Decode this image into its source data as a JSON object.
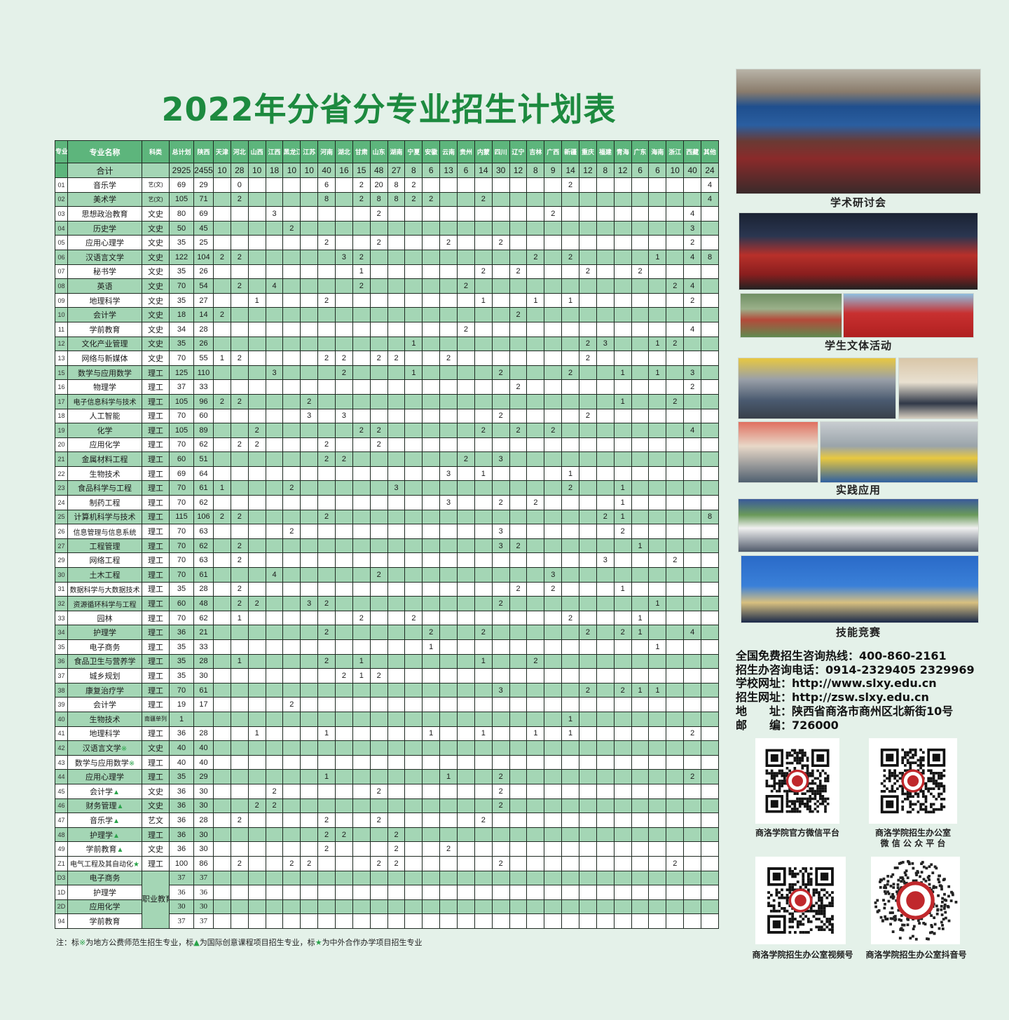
{
  "title": "2022年分省分专业招生计划表",
  "header": {
    "code": "专业代号",
    "name": "专业名称",
    "type": "科类",
    "total": "总计划",
    "shaanxi": "陕西",
    "provinces": [
      "天津",
      "河北",
      "山西",
      "江西",
      "黑龙江",
      "江苏",
      "河南",
      "湖北",
      "甘肃",
      "山东",
      "湖南",
      "宁夏",
      "安徽",
      "云南",
      "贵州",
      "内蒙",
      "四川",
      "辽宁",
      "吉林",
      "广西",
      "新疆",
      "重庆",
      "福建",
      "青海",
      "广东",
      "海南",
      "浙江",
      "西藏",
      "其他"
    ]
  },
  "summary": {
    "label": "合计",
    "total": "2925",
    "shaanxi": "2455",
    "provinces": [
      "10",
      "28",
      "10",
      "18",
      "10",
      "10",
      "40",
      "16",
      "15",
      "48",
      "27",
      "8",
      "6",
      "13",
      "6",
      "14",
      "30",
      "12",
      "8",
      "9",
      "14",
      "12",
      "8",
      "12",
      "6",
      "6",
      "10",
      "40",
      "24"
    ]
  },
  "vocational_type": "职业教育单招本科",
  "rows": [
    {
      "code": "01",
      "name": "音乐学",
      "type": "艺(文)",
      "total": "69",
      "shaanxi": "29",
      "cells": {
        "河北": "0",
        "河南": "6",
        "甘肃": "2",
        "山东": "20",
        "湖南": "8",
        "宁夏": "2",
        "新疆": "2",
        "其他": "4"
      }
    },
    {
      "code": "02",
      "name": "美术学",
      "type": "艺(文)",
      "total": "105",
      "shaanxi": "71",
      "cells": {
        "河北": "2",
        "河南": "8",
        "甘肃": "2",
        "山东": "8",
        "湖南": "8",
        "宁夏": "2",
        "安徽": "2",
        "内蒙": "2",
        "其他": "4"
      }
    },
    {
      "code": "03",
      "name": "思想政治教育",
      "type": "文史",
      "total": "80",
      "shaanxi": "69",
      "cells": {
        "江西": "3",
        "山东": "2",
        "广西": "2",
        "西藏": "4"
      }
    },
    {
      "code": "04",
      "name": "历史学",
      "type": "文史",
      "total": "50",
      "shaanxi": "45",
      "cells": {
        "黑龙江": "2",
        "西藏": "3"
      }
    },
    {
      "code": "05",
      "name": "应用心理学",
      "type": "文史",
      "total": "35",
      "shaanxi": "25",
      "cells": {
        "河南": "2",
        "山东": "2",
        "云南": "2",
        "四川": "2",
        "西藏": "2"
      }
    },
    {
      "code": "06",
      "name": "汉语言文学",
      "type": "文史",
      "total": "122",
      "shaanxi": "104",
      "cells": {
        "天津": "2",
        "河北": "2",
        "湖北": "3",
        "甘肃": "2",
        "吉林": "2",
        "新疆": "2",
        "海南": "1",
        "西藏": "4",
        "其他": "8"
      }
    },
    {
      "code": "07",
      "name": "秘书学",
      "type": "文史",
      "total": "35",
      "shaanxi": "26",
      "cells": {
        "甘肃": "1",
        "内蒙": "2",
        "辽宁": "2",
        "重庆": "2",
        "广东": "2"
      }
    },
    {
      "code": "08",
      "name": "英语",
      "type": "文史",
      "total": "70",
      "shaanxi": "54",
      "cells": {
        "河北": "2",
        "江西": "4",
        "甘肃": "2",
        "贵州": "2",
        "浙江": "2",
        "西藏": "4"
      }
    },
    {
      "code": "09",
      "name": "地理科学",
      "type": "文史",
      "total": "35",
      "shaanxi": "27",
      "cells": {
        "山西": "1",
        "河南": "2",
        "内蒙": "1",
        "吉林": "1",
        "新疆": "1",
        "西藏": "2"
      }
    },
    {
      "code": "10",
      "name": "会计学",
      "type": "文史",
      "total": "18",
      "shaanxi": "14",
      "cells": {
        "天津": "2",
        "辽宁": "2"
      }
    },
    {
      "code": "11",
      "name": "学前教育",
      "type": "文史",
      "total": "34",
      "shaanxi": "28",
      "cells": {
        "贵州": "2",
        "西藏": "4"
      }
    },
    {
      "code": "12",
      "name": "文化产业管理",
      "type": "文史",
      "total": "35",
      "shaanxi": "26",
      "cells": {
        "宁夏": "1",
        "重庆": "2",
        "福建": "3",
        "海南": "1",
        "浙江": "2"
      }
    },
    {
      "code": "13",
      "name": "网络与新媒体",
      "type": "文史",
      "total": "70",
      "shaanxi": "55",
      "cells": {
        "天津": "1",
        "河北": "2",
        "河南": "2",
        "湖北": "2",
        "山东": "2",
        "湖南": "2",
        "云南": "2",
        "重庆": "2"
      }
    },
    {
      "code": "15",
      "name": "数学与应用数学",
      "type": "理工",
      "total": "125",
      "shaanxi": "110",
      "cells": {
        "江西": "3",
        "湖北": "2",
        "宁夏": "1",
        "四川": "2",
        "新疆": "2",
        "青海": "1",
        "海南": "1",
        "西藏": "3"
      }
    },
    {
      "code": "16",
      "name": "物理学",
      "type": "理工",
      "total": "37",
      "shaanxi": "33",
      "cells": {
        "辽宁": "2",
        "西藏": "2"
      }
    },
    {
      "code": "17",
      "name": "电子信息科学与技术",
      "type": "理工",
      "total": "105",
      "shaanxi": "96",
      "cells": {
        "天津": "2",
        "河北": "2",
        "江苏": "2",
        "青海": "1",
        "浙江": "2"
      }
    },
    {
      "code": "18",
      "name": "人工智能",
      "type": "理工",
      "total": "70",
      "shaanxi": "60",
      "cells": {
        "江苏": "3",
        "湖北": "3",
        "四川": "2",
        "重庆": "2"
      }
    },
    {
      "code": "19",
      "name": "化学",
      "type": "理工",
      "total": "105",
      "shaanxi": "89",
      "cells": {
        "山西": "2",
        "甘肃": "2",
        "山东": "2",
        "内蒙": "2",
        "辽宁": "2",
        "广西": "2",
        "西藏": "4"
      }
    },
    {
      "code": "20",
      "name": "应用化学",
      "type": "理工",
      "total": "70",
      "shaanxi": "62",
      "cells": {
        "河北": "2",
        "山西": "2",
        "河南": "2",
        "山东": "2"
      }
    },
    {
      "code": "21",
      "name": "金属材料工程",
      "type": "理工",
      "total": "60",
      "shaanxi": "51",
      "cells": {
        "河南": "2",
        "湖北": "2",
        "贵州": "2",
        "四川": "3"
      }
    },
    {
      "code": "22",
      "name": "生物技术",
      "type": "理工",
      "total": "69",
      "shaanxi": "64",
      "cells": {
        "云南": "3",
        "内蒙": "1",
        "新疆": "1"
      }
    },
    {
      "code": "23",
      "name": "食品科学与工程",
      "type": "理工",
      "total": "70",
      "shaanxi": "61",
      "cells": {
        "天津": "1",
        "黑龙江": "2",
        "湖南": "3",
        "新疆": "2",
        "青海": "1"
      }
    },
    {
      "code": "24",
      "name": "制药工程",
      "type": "理工",
      "total": "70",
      "shaanxi": "62",
      "cells": {
        "云南": "3",
        "四川": "2",
        "吉林": "2",
        "青海": "1"
      }
    },
    {
      "code": "25",
      "name": "计算机科学与技术",
      "type": "理工",
      "total": "115",
      "shaanxi": "106",
      "cells": {
        "天津": "2",
        "河北": "2",
        "河南": "2",
        "福建": "2",
        "青海": "1",
        "其他": "8"
      }
    },
    {
      "code": "26",
      "name": "信息管理与信息系统",
      "type": "理工",
      "total": "70",
      "shaanxi": "63",
      "cells": {
        "黑龙江": "2",
        "四川": "3",
        "青海": "2"
      }
    },
    {
      "code": "27",
      "name": "工程管理",
      "type": "理工",
      "total": "70",
      "shaanxi": "62",
      "cells": {
        "河北": "2",
        "四川": "3",
        "辽宁": "2",
        "广东": "1"
      }
    },
    {
      "code": "29",
      "name": "网络工程",
      "type": "理工",
      "total": "70",
      "shaanxi": "63",
      "cells": {
        "河北": "2",
        "福建": "3",
        "浙江": "2"
      }
    },
    {
      "code": "30",
      "name": "土木工程",
      "type": "理工",
      "total": "70",
      "shaanxi": "61",
      "cells": {
        "江西": "4",
        "山东": "2",
        "广西": "3"
      }
    },
    {
      "code": "31",
      "name": "数据科学与大数据技术",
      "type": "理工",
      "total": "35",
      "shaanxi": "28",
      "cells": {
        "河北": "2",
        "辽宁": "2",
        "广西": "2",
        "青海": "1"
      }
    },
    {
      "code": "32",
      "name": "资源循环科学与工程",
      "type": "理工",
      "total": "60",
      "shaanxi": "48",
      "cells": {
        "河北": "2",
        "山西": "2",
        "江苏": "3",
        "河南": "2",
        "四川": "2",
        "海南": "1"
      }
    },
    {
      "code": "33",
      "name": "园林",
      "type": "理工",
      "total": "70",
      "shaanxi": "62",
      "cells": {
        "河北": "1",
        "甘肃": "2",
        "宁夏": "2",
        "新疆": "2",
        "广东": "1"
      }
    },
    {
      "code": "34",
      "name": "护理学",
      "type": "理工",
      "total": "36",
      "shaanxi": "21",
      "cells": {
        "河南": "2",
        "安徽": "2",
        "内蒙": "2",
        "重庆": "2",
        "青海": "2",
        "广东": "1",
        "西藏": "4"
      }
    },
    {
      "code": "35",
      "name": "电子商务",
      "type": "理工",
      "total": "35",
      "shaanxi": "33",
      "cells": {
        "安徽": "1",
        "海南": "1"
      }
    },
    {
      "code": "36",
      "name": "食品卫生与营养学",
      "type": "理工",
      "total": "35",
      "shaanxi": "28",
      "cells": {
        "河北": "1",
        "河南": "2",
        "甘肃": "1",
        "内蒙": "1",
        "吉林": "2"
      }
    },
    {
      "code": "37",
      "name": "城乡规划",
      "type": "理工",
      "total": "35",
      "shaanxi": "30",
      "cells": {
        "湖北": "2",
        "甘肃": "1",
        "山东": "2"
      }
    },
    {
      "code": "38",
      "name": "康复治疗学",
      "type": "理工",
      "total": "70",
      "shaanxi": "61",
      "cells": {
        "四川": "3",
        "重庆": "2",
        "青海": "2",
        "广东": "1",
        "海南": "1"
      }
    },
    {
      "code": "39",
      "name": "会计学",
      "type": "理工",
      "total": "19",
      "shaanxi": "17",
      "cells": {
        "黑龙江": "2"
      }
    },
    {
      "code": "40",
      "name": "生物技术",
      "type": "南疆单列",
      "total": "1",
      "shaanxi": "",
      "cells": {
        "新疆": "1"
      }
    },
    {
      "code": "41",
      "name": "地理科学",
      "type": "理工",
      "total": "36",
      "shaanxi": "28",
      "cells": {
        "山西": "1",
        "河南": "1",
        "安徽": "1",
        "内蒙": "1",
        "吉林": "1",
        "新疆": "1",
        "西藏": "2"
      }
    },
    {
      "code": "42",
      "name": "汉语言文学",
      "mark": "※",
      "type": "文史",
      "total": "40",
      "shaanxi": "40",
      "cells": {}
    },
    {
      "code": "43",
      "name": "数学与应用数学",
      "mark": "※",
      "type": "理工",
      "total": "40",
      "shaanxi": "40",
      "cells": {}
    },
    {
      "code": "44",
      "name": "应用心理学",
      "type": "理工",
      "total": "35",
      "shaanxi": "29",
      "cells": {
        "河南": "1",
        "云南": "1",
        "四川": "2",
        "西藏": "2"
      }
    },
    {
      "code": "45",
      "name": "会计学",
      "mark": "▲",
      "type": "文史",
      "total": "36",
      "shaanxi": "30",
      "cells": {
        "江西": "2",
        "山东": "2",
        "四川": "2"
      }
    },
    {
      "code": "46",
      "name": "财务管理",
      "mark": "▲",
      "type": "文史",
      "total": "36",
      "shaanxi": "30",
      "cells": {
        "山西": "2",
        "江西": "2",
        "四川": "2"
      }
    },
    {
      "code": "47",
      "name": "音乐学",
      "mark": "▲",
      "type": "艺文",
      "total": "36",
      "shaanxi": "28",
      "cells": {
        "河北": "2",
        "河南": "2",
        "山东": "2",
        "内蒙": "2"
      }
    },
    {
      "code": "48",
      "name": "护理学",
      "mark": "▲",
      "type": "理工",
      "total": "36",
      "shaanxi": "30",
      "cells": {
        "河南": "2",
        "湖北": "2",
        "湖南": "2"
      }
    },
    {
      "code": "49",
      "name": "学前教育",
      "mark": "▲",
      "type": "文史",
      "total": "36",
      "shaanxi": "30",
      "cells": {
        "河南": "2",
        "湖南": "2",
        "云南": "2"
      }
    },
    {
      "code": "Z1",
      "name": "电气工程及其自动化",
      "mark": "★",
      "type": "理工",
      "total": "100",
      "shaanxi": "86",
      "cells": {
        "河北": "2",
        "黑龙江": "2",
        "江苏": "2",
        "山东": "2",
        "湖南": "2",
        "四川": "2",
        "浙江": "2"
      }
    },
    {
      "code": "D3",
      "name": "电子商务",
      "vocational": true,
      "total": "37",
      "shaanxi": "37",
      "cells": {}
    },
    {
      "code": "1D",
      "name": "护理学",
      "vocational": true,
      "total": "36",
      "shaanxi": "36",
      "cells": {}
    },
    {
      "code": "2D",
      "name": "应用化学",
      "vocational": true,
      "total": "30",
      "shaanxi": "30",
      "cells": {}
    },
    {
      "code": "94",
      "name": "学前教育",
      "vocational": true,
      "total": "37",
      "shaanxi": "37",
      "cells": {}
    }
  ],
  "note": {
    "p1": "注：标",
    "m1": "※",
    "p2": "为地方公费师范生招生专业，标",
    "m2": "▲",
    "p3": "为国际创意课程项目招生专业，标",
    "m3": "★",
    "p4": "为中外合作办学项目招生专业"
  },
  "gallery": {
    "captions": [
      "学术研讨会",
      "学生文体活动",
      "实践应用",
      "技能竞赛"
    ]
  },
  "contact": {
    "hotline_label": "全国免费招生咨询热线：",
    "hotline": "400-860-2161",
    "office_label": "招生办咨询电话：",
    "office": "0914-2329405  2329969",
    "site_label": "学校网址：",
    "site": "http://www.slxy.edu.cn",
    "admission_site_label": "招生网址：",
    "admission_site": "http://zsw.slxy.edu.cn",
    "address_label": "地　　址：",
    "address": "陕西省商洛市商州区北新街10号",
    "postcode_label": "邮　　编：",
    "postcode": "726000"
  },
  "qr_codes": [
    {
      "caption": "商洛学院官方微信平台"
    },
    {
      "caption": "商洛学院招生办公室",
      "caption2": "微 信 公 众 平 台"
    },
    {
      "caption": "商洛学院招生办公室视频号"
    },
    {
      "caption": "商洛学院招生办公室抖音号"
    }
  ],
  "colors": {
    "title": "#1d8a3f",
    "row_shade": "#a4d6b5",
    "header": "#5db57c",
    "mark": "#2aa34a",
    "background": "#e4f1e9"
  }
}
